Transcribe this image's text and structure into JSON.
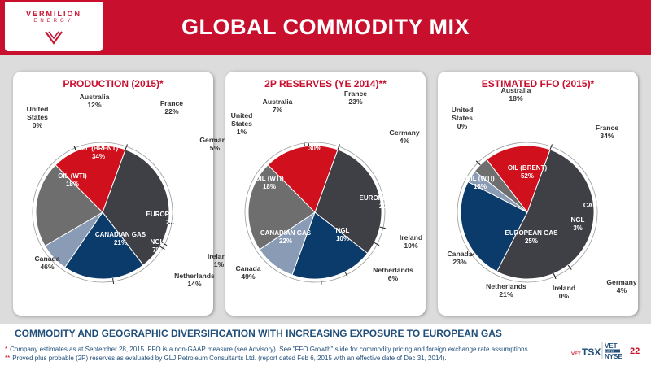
{
  "header": {
    "title": "GLOBAL COMMODITY MIX",
    "logo_name": "VERMILION",
    "logo_sub": "ENERGY"
  },
  "chart_data": [
    {
      "type": "pie",
      "title": "PRODUCTION (2015)*",
      "inner": {
        "slices": [
          {
            "label": "OIL (BRENT)",
            "value": 34,
            "color": "#3f3f46"
          },
          {
            "label": "EUROPEAN GAS",
            "value": 20,
            "color": "#0b3b6b"
          },
          {
            "label": "NGL",
            "value": 7,
            "color": "#8a9bb5"
          },
          {
            "label": "CANADIAN GAS",
            "value": 21,
            "color": "#6e6e6e"
          },
          {
            "label": "OIL (WTI)",
            "value": 18,
            "color": "#d0101c"
          }
        ]
      },
      "outer": [
        {
          "label": "France",
          "value": 22
        },
        {
          "label": "Germany",
          "value": 5
        },
        {
          "label": "Ireland",
          "value": 1
        },
        {
          "label": "Netherlands",
          "value": 14
        },
        {
          "label": "Canada",
          "value": 46
        },
        {
          "label": "United States",
          "value": 0
        },
        {
          "label": "Australia",
          "value": 12
        }
      ]
    },
    {
      "type": "pie",
      "title": "2P RESERVES (YE 2014)**",
      "inner": {
        "slices": [
          {
            "label": "OIL (BRENT)",
            "value": 30,
            "color": "#3f3f46"
          },
          {
            "label": "EUROPEAN GAS",
            "value": 20,
            "color": "#0b3b6b"
          },
          {
            "label": "NGL",
            "value": 10,
            "color": "#8a9bb5"
          },
          {
            "label": "CANADIAN GAS",
            "value": 22,
            "color": "#6e6e6e"
          },
          {
            "label": "OIL (WTI)",
            "value": 18,
            "color": "#d0101c"
          }
        ]
      },
      "outer": [
        {
          "label": "France",
          "value": 23
        },
        {
          "label": "Germany",
          "value": 4
        },
        {
          "label": "Ireland",
          "value": 10
        },
        {
          "label": "Netherlands",
          "value": 6
        },
        {
          "label": "Canada",
          "value": 49
        },
        {
          "label": "United States",
          "value": 1
        },
        {
          "label": "Australia",
          "value": 7
        }
      ]
    },
    {
      "type": "pie",
      "title": "ESTIMATED FFO (2015)*",
      "inner": {
        "slices": [
          {
            "label": "OIL (BRENT)",
            "value": 52,
            "color": "#3f3f46"
          },
          {
            "label": "EUROPEAN GAS",
            "value": 25,
            "color": "#0b3b6b"
          },
          {
            "label": "NGL",
            "value": 3,
            "color": "#8a9bb5"
          },
          {
            "label": "CANADIAN GAS",
            "value": 4,
            "color": "#6e6e6e"
          },
          {
            "label": "OIL (WTI)",
            "value": 16,
            "color": "#d0101c"
          }
        ]
      },
      "outer": [
        {
          "label": "France",
          "value": 34
        },
        {
          "label": "Germany",
          "value": 4
        },
        {
          "label": "Ireland",
          "value": 0
        },
        {
          "label": "Netherlands",
          "value": 21
        },
        {
          "label": "Canada",
          "value": 23
        },
        {
          "label": "United States",
          "value": 0
        },
        {
          "label": "Australia",
          "value": 18
        }
      ]
    }
  ],
  "tagline": "COMMODITY AND GEOGRAPHIC DIVERSIFICATION WITH INCREASING EXPOSURE TO EUROPEAN GAS",
  "footnotes": {
    "fn1_mark": "*",
    "fn1": "Company estimates as at September 28, 2015. FFO is a non-GAAP measure (see Advisory). See \"FFO Growth\" slide for commodity pricing and foreign exchange rate assumptions",
    "fn2_mark": "**",
    "fn2": "Proved plus probable (2P) reserves as evaluated by GLJ Petroleum Consultants Ltd. (report dated Feb 6, 2015 with an effective date of Dec 31, 2014)."
  },
  "exchange": {
    "tsx": "TSX",
    "vet1": "VET",
    "vet2": "VET",
    "nyse": "NYSE",
    "listed": "LISTED"
  },
  "page_number": "22"
}
